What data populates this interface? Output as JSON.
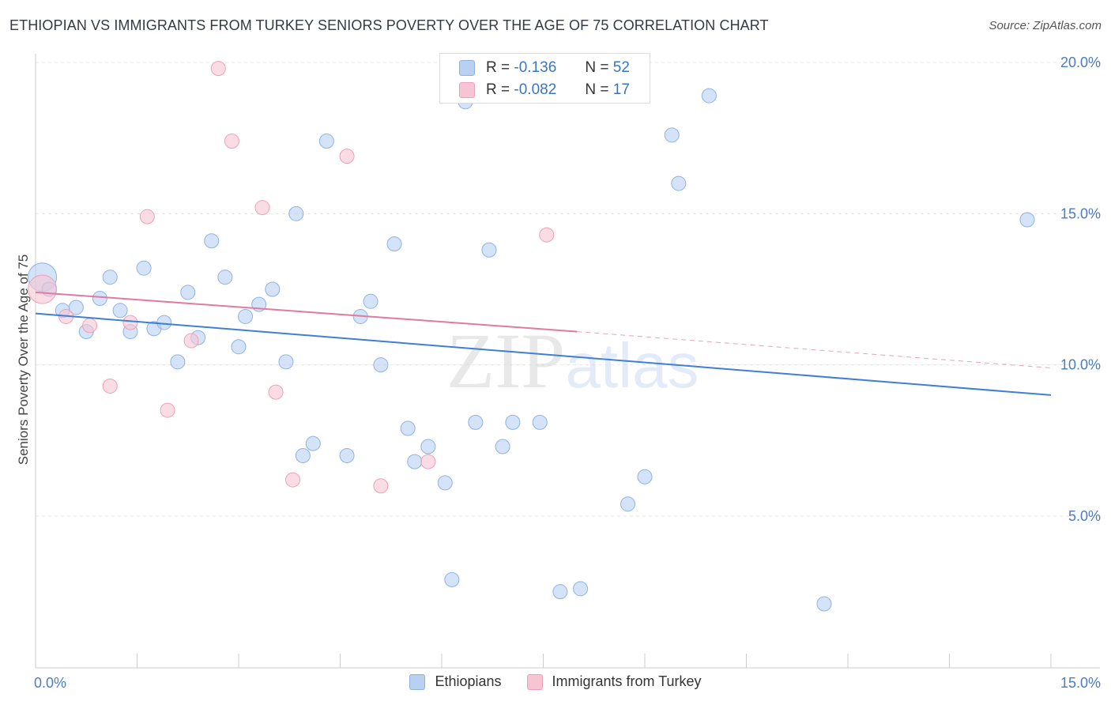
{
  "header": {
    "title": "ETHIOPIAN VS IMMIGRANTS FROM TURKEY SENIORS POVERTY OVER THE AGE OF 75 CORRELATION CHART",
    "source": "Source: ZipAtlas.com"
  },
  "colors": {
    "ethiopians_fill": "#b8d0f2",
    "ethiopians_line": "#3f7fd6",
    "turkey_fill": "#f7c4d3",
    "turkey_line": "#e07aa0",
    "tick_text": "#4a7cc0",
    "grid": "#e6e6e6"
  },
  "legend": {
    "r_label": "R =",
    "n_label": "N =",
    "rows": [
      {
        "r": "-0.136",
        "n": "52"
      },
      {
        "r": "-0.082",
        "n": "17"
      }
    ]
  },
  "watermark": {
    "part1": "ZIP",
    "part2": "atlas"
  },
  "chart_data": {
    "type": "scatter",
    "title": "ETHIOPIAN VS IMMIGRANTS FROM TURKEY SENIORS POVERTY OVER THE AGE OF 75 CORRELATION CHART",
    "xlabel": "",
    "ylabel": "Seniors Poverty Over the Age of 75",
    "xlim": [
      0,
      15
    ],
    "ylim": [
      0,
      21
    ],
    "x_tick_labels": [
      "0.0%",
      "15.0%"
    ],
    "y_ticks": [
      5,
      10,
      15,
      20
    ],
    "y_tick_labels": [
      "5.0%",
      "10.0%",
      "15.0%",
      "20.0%"
    ],
    "grid": "horizontal dashed",
    "legend_position": "bottom",
    "series": [
      {
        "name": "Ethiopians",
        "r": -0.136,
        "n": 52,
        "trend": {
          "x": [
            0,
            15
          ],
          "y": [
            11.7,
            9.0
          ]
        },
        "points": [
          [
            0.1,
            12.9,
            2.0
          ],
          [
            0.2,
            12.5,
            1.0
          ],
          [
            0.4,
            11.8,
            1.0
          ],
          [
            0.6,
            11.9,
            1.0
          ],
          [
            0.75,
            11.1,
            1.0
          ],
          [
            0.95,
            12.2,
            1.0
          ],
          [
            1.1,
            12.9,
            1.0
          ],
          [
            1.25,
            11.8,
            1.0
          ],
          [
            1.4,
            11.1,
            1.0
          ],
          [
            1.6,
            13.2,
            1.0
          ],
          [
            1.75,
            11.2,
            1.0
          ],
          [
            1.9,
            11.4,
            1.0
          ],
          [
            2.1,
            10.1,
            1.0
          ],
          [
            2.25,
            12.4,
            1.0
          ],
          [
            2.4,
            10.9,
            1.0
          ],
          [
            2.6,
            14.1,
            1.0
          ],
          [
            2.8,
            12.9,
            1.0
          ],
          [
            3.0,
            10.6,
            1.0
          ],
          [
            3.1,
            11.6,
            1.0
          ],
          [
            3.3,
            12.0,
            1.0
          ],
          [
            3.5,
            12.5,
            1.0
          ],
          [
            3.7,
            10.1,
            1.0
          ],
          [
            3.85,
            15.0,
            1.0
          ],
          [
            3.95,
            7.0,
            1.0
          ],
          [
            4.1,
            7.4,
            1.0
          ],
          [
            4.3,
            17.4,
            1.0
          ],
          [
            4.6,
            7.0,
            1.0
          ],
          [
            4.8,
            11.6,
            1.0
          ],
          [
            4.95,
            12.1,
            1.0
          ],
          [
            5.1,
            10.0,
            1.0
          ],
          [
            5.3,
            14.0,
            1.0
          ],
          [
            5.5,
            7.9,
            1.0
          ],
          [
            5.6,
            6.8,
            1.0
          ],
          [
            5.8,
            7.3,
            1.0
          ],
          [
            6.05,
            6.1,
            1.0
          ],
          [
            6.15,
            2.9,
            1.0
          ],
          [
            6.35,
            18.7,
            1.0
          ],
          [
            6.5,
            8.1,
            1.0
          ],
          [
            6.7,
            13.8,
            1.0
          ],
          [
            6.9,
            7.3,
            1.0
          ],
          [
            7.05,
            8.1,
            1.0
          ],
          [
            7.3,
            19.4,
            1.0
          ],
          [
            7.45,
            8.1,
            1.0
          ],
          [
            7.75,
            2.5,
            1.0
          ],
          [
            8.05,
            2.6,
            1.0
          ],
          [
            8.75,
            5.4,
            1.0
          ],
          [
            9.0,
            6.3,
            1.0
          ],
          [
            9.4,
            17.6,
            1.0
          ],
          [
            9.5,
            16.0,
            1.0
          ],
          [
            9.95,
            18.9,
            1.0
          ],
          [
            11.65,
            2.1,
            1.0
          ],
          [
            14.65,
            14.8,
            1.0
          ]
        ]
      },
      {
        "name": "Immigrants from Turkey",
        "r": -0.082,
        "n": 17,
        "trend": {
          "x": [
            0,
            8.0
          ],
          "y": [
            12.4,
            11.1
          ]
        },
        "trend_dashed": {
          "x": [
            8.0,
            15
          ],
          "y": [
            11.1,
            9.9
          ]
        },
        "points": [
          [
            0.1,
            12.5,
            2.0
          ],
          [
            0.45,
            11.6,
            1.0
          ],
          [
            0.8,
            11.3,
            1.0
          ],
          [
            1.1,
            9.3,
            1.0
          ],
          [
            1.4,
            11.4,
            1.0
          ],
          [
            1.65,
            14.9,
            1.0
          ],
          [
            1.95,
            8.5,
            1.0
          ],
          [
            2.3,
            10.8,
            1.0
          ],
          [
            2.7,
            19.8,
            1.0
          ],
          [
            2.9,
            17.4,
            1.0
          ],
          [
            3.35,
            15.2,
            1.0
          ],
          [
            3.55,
            9.1,
            1.0
          ],
          [
            3.8,
            6.2,
            1.0
          ],
          [
            4.6,
            16.9,
            1.0
          ],
          [
            5.1,
            6.0,
            1.0
          ],
          [
            5.8,
            6.8,
            1.0
          ],
          [
            7.55,
            14.3,
            1.0
          ]
        ]
      }
    ]
  }
}
